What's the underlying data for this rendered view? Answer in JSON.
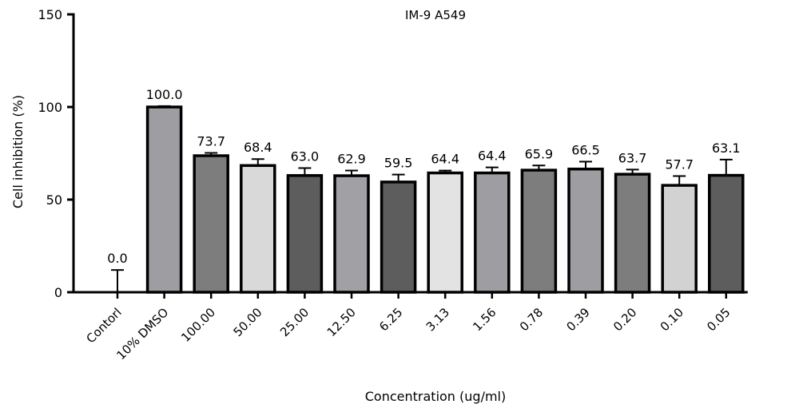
{
  "chart_data": {
    "type": "bar",
    "title": "IM-9 A549",
    "xlabel": "Concentration (ug/ml)",
    "ylabel": "Cell inhibition (%)",
    "ylim": [
      0,
      150
    ],
    "yticks": [
      0,
      50,
      100,
      150
    ],
    "grid": false,
    "categories": [
      "Contorl",
      "10% DMSO",
      "100.00",
      "50.00",
      "25.00",
      "12.50",
      "6.25",
      "3.13",
      "1.56",
      "0.78",
      "0.39",
      "0.20",
      "0.10",
      "0.05"
    ],
    "values": [
      0.0,
      100.0,
      73.7,
      68.4,
      63.0,
      62.9,
      59.5,
      64.4,
      64.4,
      65.9,
      66.5,
      63.7,
      57.7,
      63.1
    ],
    "value_labels": [
      "0.0",
      "100.0",
      "73.7",
      "68.4",
      "63.0",
      "62.9",
      "59.5",
      "64.4",
      "64.4",
      "65.9",
      "66.5",
      "63.7",
      "57.7",
      "63.1"
    ],
    "errors": [
      12,
      0.5,
      1.5,
      3.5,
      4,
      2.8,
      4,
      1.3,
      3,
      2.5,
      4,
      2.5,
      5,
      8.5
    ],
    "bar_colors": [
      "#ffffff",
      "#9d9da2",
      "#7d7d7d",
      "#d9d9d9",
      "#5d5d5d",
      "#a1a1a5",
      "#5d5d5d",
      "#e3e3e3",
      "#9d9da2",
      "#7d7d7d",
      "#9d9da2",
      "#7d7d7d",
      "#d2d2d2",
      "#5d5d5d"
    ],
    "bar_edge_color": "#000000"
  }
}
